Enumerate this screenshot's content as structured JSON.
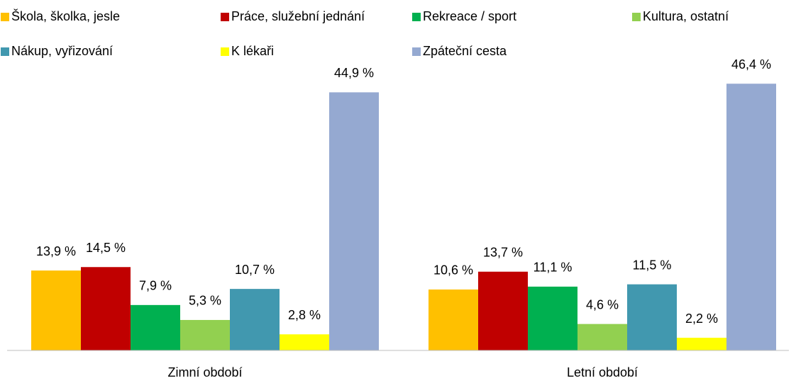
{
  "chart_data": {
    "type": "bar",
    "categories": [
      "Zimní období",
      "Letní období"
    ],
    "ylim": [
      0,
      50
    ],
    "legend": "top",
    "series": [
      {
        "name": "Škola, školka, jesle",
        "color": "#ffc000",
        "values": [
          13.9,
          10.6
        ],
        "value_labels": [
          "13,9 %",
          "10,6 %"
        ]
      },
      {
        "name": "Práce, služební jednání",
        "color": "#c00000",
        "values": [
          14.5,
          13.7
        ],
        "value_labels": [
          "14,5 %",
          "13,7 %"
        ]
      },
      {
        "name": "Rekreace / sport",
        "color": "#00b050",
        "values": [
          7.9,
          11.1
        ],
        "value_labels": [
          "7,9 %",
          "11,1 %"
        ]
      },
      {
        "name": "Kultura, ostatní",
        "color": "#92d050",
        "values": [
          5.3,
          4.6
        ],
        "value_labels": [
          "5,3 %",
          "4,6 %"
        ]
      },
      {
        "name": "Nákup, vyřizování",
        "color": "#4198af",
        "values": [
          10.7,
          11.5
        ],
        "value_labels": [
          "10,7 %",
          "11,5 %"
        ]
      },
      {
        "name": "K lékaři",
        "color": "#ffff00",
        "values": [
          2.8,
          2.2
        ],
        "value_labels": [
          "2,8 %",
          "2,2 %"
        ]
      },
      {
        "name": "Zpáteční cesta",
        "color": "#95a9d1",
        "values": [
          44.9,
          46.4
        ],
        "value_labels": [
          "44,9 %",
          "46,4 %"
        ]
      }
    ]
  }
}
